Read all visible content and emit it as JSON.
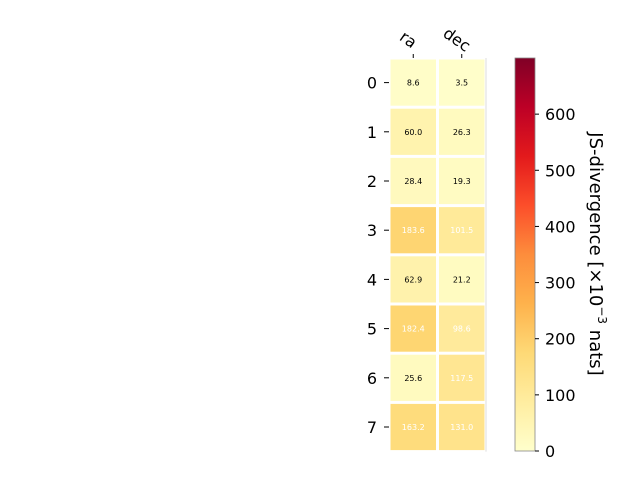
{
  "chart_data": {
    "type": "heatmap",
    "columns": [
      "ra",
      "dec"
    ],
    "rows": [
      "0",
      "1",
      "2",
      "3",
      "4",
      "5",
      "6",
      "7"
    ],
    "values": [
      [
        8.6,
        3.5
      ],
      [
        60.0,
        26.3
      ],
      [
        28.4,
        19.3
      ],
      [
        183.6,
        101.5
      ],
      [
        62.9,
        21.2
      ],
      [
        182.4,
        98.6
      ],
      [
        25.6,
        117.5
      ],
      [
        163.2,
        131.0
      ]
    ],
    "cell_labels": [
      [
        "8.6",
        "3.5"
      ],
      [
        "60.0",
        "26.3"
      ],
      [
        "28.4",
        "19.3"
      ],
      [
        "183.6",
        "101.5"
      ],
      [
        "62.9",
        "21.2"
      ],
      [
        "182.4",
        "98.6"
      ],
      [
        "25.6",
        "117.5"
      ],
      [
        "163.2",
        "131.0"
      ]
    ],
    "colormap": "YlOrRd",
    "vmin": 0,
    "vmax": 700,
    "colorbar": {
      "label": "JS-divergence [×10",
      "label_exponent": "−3",
      "label_suffix": " nats]",
      "ticks": [
        0,
        100,
        200,
        300,
        400,
        500,
        600
      ],
      "tick_labels": [
        "0",
        "100",
        "200",
        "300",
        "400",
        "500",
        "600"
      ]
    },
    "grid": false,
    "legend": "colorbar-right"
  }
}
